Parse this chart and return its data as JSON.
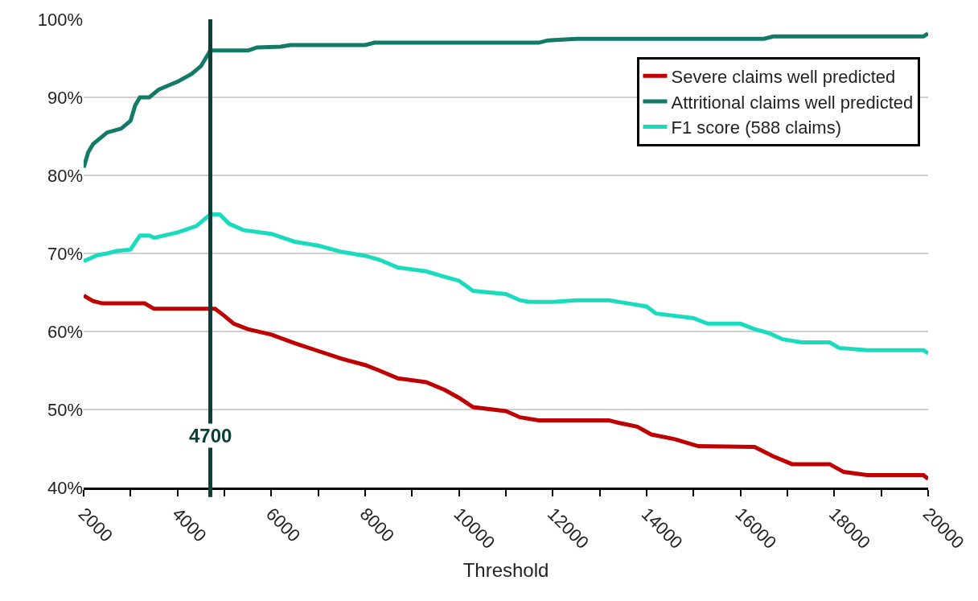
{
  "chart_data": {
    "type": "line",
    "xlabel": "Threshold",
    "series": [
      {
        "name": "Severe claims well predicted",
        "color": "#c00000",
        "x": [
          2000,
          2200,
          2400,
          3300,
          3500,
          4800,
          5000,
          5200,
          5500,
          6000,
          6500,
          7000,
          7500,
          8000,
          8300,
          8700,
          9300,
          9700,
          10000,
          10300,
          11000,
          11300,
          11700,
          13200,
          13400,
          13800,
          14100,
          14600,
          15100,
          16300,
          16700,
          17100,
          17900,
          18200,
          18700,
          19900,
          20000
        ],
        "values": [
          64.6,
          63.9,
          63.6,
          63.6,
          62.9,
          62.9,
          62,
          61,
          60.3,
          59.6,
          58.5,
          57.5,
          56.5,
          55.7,
          55,
          54,
          53.5,
          52.5,
          51.5,
          50.3,
          49.8,
          49,
          48.6,
          48.6,
          48.3,
          47.8,
          46.8,
          46.2,
          45.3,
          45.2,
          44,
          43,
          43,
          42,
          41.6,
          41.6,
          41.1
        ]
      },
      {
        "name": "Attritional claims well predicted",
        "color": "#127a67",
        "x": [
          2000,
          2100,
          2200,
          2500,
          2800,
          3000,
          3100,
          3200,
          3400,
          3600,
          4000,
          4300,
          4500,
          4700,
          5500,
          5700,
          6200,
          6400,
          8000,
          8200,
          11700,
          11900,
          12500,
          16500,
          16700,
          19900,
          20000
        ],
        "values": [
          81,
          83,
          84,
          85.5,
          86,
          87,
          89,
          90,
          90,
          91,
          92,
          93,
          94,
          96,
          96,
          96.4,
          96.5,
          96.7,
          96.7,
          97,
          97,
          97.3,
          97.5,
          97.5,
          97.8,
          97.8,
          98.2
        ]
      },
      {
        "name": "F1 score (588 claims)",
        "color": "#1adbbd",
        "x": [
          2000,
          2300,
          2500,
          2700,
          3000,
          3200,
          3400,
          3500,
          4000,
          4400,
          4700,
          4900,
          5100,
          5400,
          6000,
          6500,
          7000,
          7500,
          8000,
          8300,
          8700,
          9300,
          9700,
          10000,
          10300,
          11000,
          11300,
          11500,
          12000,
          12500,
          13200,
          13500,
          14000,
          14200,
          15000,
          15300,
          16000,
          16300,
          16600,
          16900,
          17300,
          17900,
          18100,
          18700,
          19900,
          20000
        ],
        "values": [
          69,
          69.8,
          70,
          70.3,
          70.5,
          72.3,
          72.3,
          72,
          72.7,
          73.5,
          75,
          75,
          73.8,
          73,
          72.5,
          71.5,
          71,
          70.2,
          69.7,
          69.2,
          68.2,
          67.7,
          67,
          66.5,
          65.2,
          64.8,
          64,
          63.8,
          63.8,
          64,
          64,
          63.7,
          63.2,
          62.3,
          61.7,
          61,
          61,
          60.3,
          59.8,
          59,
          58.6,
          58.6,
          57.9,
          57.6,
          57.6,
          57.2
        ]
      }
    ],
    "xlim": [
      2000,
      20000
    ],
    "xticks": [
      2000,
      {
        "value": 3000,
        "label": null
      },
      4000,
      {
        "value": 5000,
        "label": null
      },
      6000,
      {
        "value": 7000,
        "label": null
      },
      8000,
      {
        "value": 9000,
        "label": null
      },
      10000,
      {
        "value": 11000,
        "label": null
      },
      12000,
      {
        "value": 13000,
        "label": null
      },
      14000,
      {
        "value": 15000,
        "label": null
      },
      16000,
      {
        "value": 17000,
        "label": null
      },
      18000,
      {
        "value": 19000,
        "label": null
      },
      20000
    ],
    "ylim": [
      40,
      100
    ],
    "yticks": [
      {
        "value": 40,
        "label": "40%"
      },
      {
        "value": 50,
        "label": "50%"
      },
      {
        "value": 60,
        "label": "60%"
      },
      {
        "value": 70,
        "label": "70%"
      },
      {
        "value": 80,
        "label": "80%"
      },
      {
        "value": 90,
        "label": "90%"
      },
      {
        "value": 100,
        "label": "100%"
      }
    ],
    "ref_lines": [
      {
        "axis": "x",
        "value": 4700,
        "label": "4700",
        "color": "#0a4038"
      }
    ],
    "grid": "y",
    "legend": "top right",
    "line_style": "solid",
    "marker": "none"
  }
}
